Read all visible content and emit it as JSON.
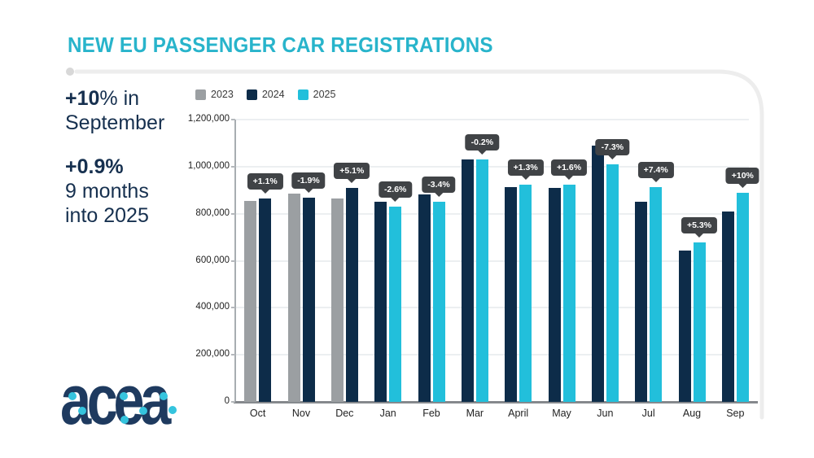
{
  "header": {
    "title": "NEW EU PASSENGER CAR REGISTRATIONS"
  },
  "stats": {
    "september": {
      "bold": "+10",
      "rest": "% in",
      "line2": "September"
    },
    "ytd": {
      "bold": "+0.9%",
      "line2": "9 months",
      "line3": "into 2025"
    }
  },
  "logo": {
    "text": "acea"
  },
  "colors": {
    "title_teal": "#28b4cb",
    "text_navy": "#16304f",
    "bar_2023": "#9b9fa2",
    "bar_2024": "#0d2c49",
    "bar_2025": "#22bfdb",
    "tooltip_bg": "#404346",
    "tooltip_text": "#ffffff",
    "frame_gray": "#ededed"
  },
  "chart_data": {
    "type": "bar",
    "title": "NEW EU PASSENGER CAR REGISTRATIONS",
    "xlabel": "",
    "ylabel": "",
    "ylim": [
      0,
      1200000
    ],
    "ytick_step": 200000,
    "ytick_labels": [
      "0",
      "200,000",
      "400,000",
      "600,000",
      "800,000",
      "1,000,000",
      "1,200,000"
    ],
    "grid": true,
    "legend_position": "top-left",
    "legend": [
      "2023",
      "2024",
      "2025"
    ],
    "series_colors": {
      "2023": "#9b9fa2",
      "2024": "#0d2c49",
      "2025": "#22bfdb"
    },
    "groups": [
      {
        "month": "Oct",
        "label": "+1.1%",
        "bars": [
          {
            "year": "2023",
            "value": 855000
          },
          {
            "year": "2024",
            "value": 864000
          }
        ]
      },
      {
        "month": "Nov",
        "label": "-1.9%",
        "bars": [
          {
            "year": "2023",
            "value": 886000
          },
          {
            "year": "2024",
            "value": 869000
          }
        ]
      },
      {
        "month": "Dec",
        "label": "+5.1%",
        "bars": [
          {
            "year": "2023",
            "value": 866000
          },
          {
            "year": "2024",
            "value": 910000
          }
        ]
      },
      {
        "month": "Jan",
        "label": "-2.6%",
        "bars": [
          {
            "year": "2024",
            "value": 852000
          },
          {
            "year": "2025",
            "value": 830000
          }
        ]
      },
      {
        "month": "Feb",
        "label": "-3.4%",
        "bars": [
          {
            "year": "2024",
            "value": 881000
          },
          {
            "year": "2025",
            "value": 851000
          }
        ]
      },
      {
        "month": "Mar",
        "label": "-0.2%",
        "bars": [
          {
            "year": "2024",
            "value": 1031000
          },
          {
            "year": "2025",
            "value": 1029000
          }
        ]
      },
      {
        "month": "April",
        "label": "+1.3%",
        "bars": [
          {
            "year": "2024",
            "value": 912000
          },
          {
            "year": "2025",
            "value": 924000
          }
        ]
      },
      {
        "month": "May",
        "label": "+1.6%",
        "bars": [
          {
            "year": "2024",
            "value": 910000
          },
          {
            "year": "2025",
            "value": 925000
          }
        ]
      },
      {
        "month": "Jun",
        "label": "-7.3%",
        "bars": [
          {
            "year": "2024",
            "value": 1090000
          },
          {
            "year": "2025",
            "value": 1010000
          }
        ]
      },
      {
        "month": "Jul",
        "label": "+7.4%",
        "bars": [
          {
            "year": "2024",
            "value": 851000
          },
          {
            "year": "2025",
            "value": 914000
          }
        ]
      },
      {
        "month": "Aug",
        "label": "+5.3%",
        "bars": [
          {
            "year": "2024",
            "value": 644000
          },
          {
            "year": "2025",
            "value": 678000
          }
        ]
      },
      {
        "month": "Sep",
        "label": "+10%",
        "bars": [
          {
            "year": "2024",
            "value": 809000
          },
          {
            "year": "2025",
            "value": 890000
          }
        ]
      }
    ]
  }
}
